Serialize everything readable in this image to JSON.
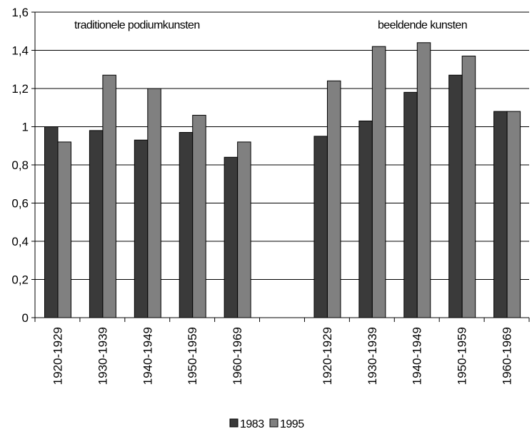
{
  "chart_data": {
    "type": "bar",
    "categories": [
      "1920-1929",
      "1930-1939",
      "1940-1949",
      "1950-1959",
      "1960-1969",
      "",
      "1920-1929",
      "1930-1939",
      "1940-1949",
      "1950-1959",
      "1960-1969"
    ],
    "series": [
      {
        "name": "1983",
        "color": "#3a3a3a",
        "values": [
          1.0,
          0.98,
          0.93,
          0.97,
          0.84,
          null,
          0.95,
          1.03,
          1.18,
          1.27,
          1.08
        ]
      },
      {
        "name": "1995",
        "color": "#808080",
        "values": [
          0.92,
          1.27,
          1.2,
          1.06,
          0.92,
          null,
          1.24,
          1.42,
          1.44,
          1.37,
          1.08
        ]
      }
    ],
    "annotations": [
      "traditionele podiumkunsten",
      "beeldende kunsten"
    ],
    "y_ticks": [
      "0",
      "0,2",
      "0,4",
      "0,6",
      "0,8",
      "1",
      "1,2",
      "1,4",
      "1,6"
    ],
    "ylim": [
      0,
      1.6
    ],
    "grid": true,
    "legend_position": "bottom"
  }
}
